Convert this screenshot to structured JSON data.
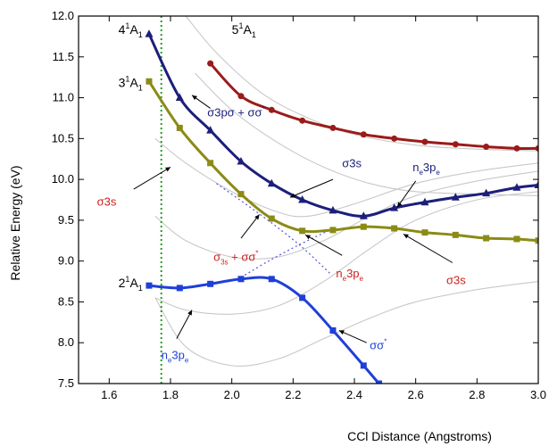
{
  "chart_data": {
    "type": "line",
    "xlabel": "CCl Distance (Angstroms)",
    "ylabel": "Relative Energy (eV)",
    "xlim": [
      1.5,
      3.0
    ],
    "ylim": [
      7.5,
      12.0
    ],
    "xticks": [
      "1.6",
      "1.8",
      "2.0",
      "2.2",
      "2.4",
      "2.6",
      "2.8",
      "3.0"
    ],
    "xtick_values": [
      1.6,
      1.8,
      2.0,
      2.2,
      2.4,
      2.6,
      2.8,
      3.0
    ],
    "yticks": [
      "7.5",
      "8.0",
      "8.5",
      "9.0",
      "9.5",
      "10.0",
      "10.5",
      "11.0",
      "11.5",
      "12.0"
    ],
    "ytick_values": [
      7.5,
      8.0,
      8.5,
      9.0,
      9.5,
      10.0,
      10.5,
      11.0,
      11.5,
      12.0
    ],
    "grid": false,
    "series": [
      {
        "state": {
          "main": "5",
          "sup": "1",
          "letter": "A",
          "sub": "1"
        },
        "color": "#9b1b1b",
        "marker": "circle",
        "x": [
          1.93,
          2.03,
          2.13,
          2.23,
          2.33,
          2.43,
          2.53,
          2.63,
          2.73,
          2.83,
          2.93,
          3.0
        ],
        "y": [
          11.42,
          11.02,
          10.85,
          10.72,
          10.63,
          10.55,
          10.5,
          10.46,
          10.43,
          10.4,
          10.38,
          10.38
        ]
      },
      {
        "state": {
          "main": "4",
          "sup": "1",
          "letter": "A",
          "sub": "1"
        },
        "color": "#1c1f7a",
        "marker": "triangle",
        "x": [
          1.73,
          1.83,
          1.93,
          2.03,
          2.13,
          2.23,
          2.33,
          2.43,
          2.53,
          2.63,
          2.73,
          2.83,
          2.93,
          3.0
        ],
        "y": [
          11.78,
          11.0,
          10.6,
          10.22,
          9.95,
          9.75,
          9.62,
          9.55,
          9.65,
          9.72,
          9.78,
          9.83,
          9.9,
          9.93
        ]
      },
      {
        "state": {
          "main": "3",
          "sup": "1",
          "letter": "A",
          "sub": "1"
        },
        "color": "#8b8b16",
        "marker": "square",
        "x": [
          1.73,
          1.83,
          1.93,
          2.03,
          2.13,
          2.23,
          2.33,
          2.43,
          2.53,
          2.63,
          2.73,
          2.83,
          2.93,
          3.0
        ],
        "y": [
          11.2,
          10.63,
          10.2,
          9.82,
          9.52,
          9.37,
          9.38,
          9.42,
          9.4,
          9.35,
          9.32,
          9.28,
          9.27,
          9.25
        ]
      },
      {
        "state": {
          "main": "2",
          "sup": "1",
          "letter": "A",
          "sub": "1"
        },
        "color": "#1f3fd8",
        "marker": "square",
        "x": [
          1.73,
          1.83,
          1.93,
          2.03,
          2.13,
          2.23,
          2.33,
          2.43,
          2.48
        ],
        "y": [
          8.7,
          8.67,
          8.72,
          8.78,
          8.78,
          8.55,
          8.15,
          7.72,
          7.5
        ]
      }
    ],
    "diabatic_curves": [
      {
        "color": "#c8c8c8",
        "x": [
          1.85,
          1.95,
          2.1,
          2.25,
          2.4,
          2.6,
          2.8,
          3.0
        ],
        "y": [
          12.0,
          11.55,
          11.05,
          10.75,
          10.55,
          10.42,
          10.37,
          10.35
        ]
      },
      {
        "color": "#c8c8c8",
        "x": [
          1.88,
          2.0,
          2.15,
          2.3,
          2.45,
          2.6,
          2.8,
          3.0
        ],
        "y": [
          11.3,
          10.85,
          10.45,
          10.15,
          9.95,
          9.85,
          9.82,
          9.8
        ]
      },
      {
        "color": "#c8c8c8",
        "x": [
          1.75,
          1.85,
          2.0,
          2.15,
          2.25,
          2.4,
          2.6,
          2.8,
          3.0
        ],
        "y": [
          10.5,
          10.2,
          9.85,
          9.6,
          9.55,
          9.7,
          9.95,
          10.1,
          10.2
        ]
      },
      {
        "color": "#c8c8c8",
        "x": [
          1.75,
          1.85,
          2.0,
          2.15,
          2.3,
          2.45,
          2.6,
          2.8,
          3.0
        ],
        "y": [
          9.55,
          9.25,
          9.05,
          9.05,
          9.25,
          9.55,
          9.8,
          9.98,
          10.1
        ]
      },
      {
        "color": "#c8c8c8",
        "x": [
          1.75,
          1.85,
          2.0,
          2.15,
          2.3,
          2.45,
          2.6,
          2.8,
          3.0
        ],
        "y": [
          8.55,
          8.4,
          8.35,
          8.45,
          8.75,
          9.15,
          9.5,
          9.75,
          9.85
        ]
      },
      {
        "color": "#c8c8c8",
        "x": [
          1.75,
          1.85,
          2.0,
          2.15,
          2.3,
          2.45,
          2.6,
          2.8,
          3.0
        ],
        "y": [
          8.55,
          7.95,
          7.72,
          7.8,
          8.05,
          8.3,
          8.5,
          8.65,
          8.75
        ]
      }
    ],
    "diabatic_crossing": [
      {
        "color": "#5555dd",
        "x": [
          1.95,
          2.1,
          2.22,
          2.32
        ],
        "y": [
          9.95,
          9.55,
          9.2,
          8.85
        ]
      },
      {
        "color": "#5555dd",
        "x": [
          2.03,
          2.12,
          2.22,
          2.32
        ],
        "y": [
          8.8,
          9.0,
          9.2,
          9.38
        ]
      }
    ],
    "vertical_marker": {
      "x": 1.77,
      "color": "#2a9a2a"
    },
    "annotations": [
      {
        "parts": [
          {
            "t": "σ3pσ + σσ"
          },
          {
            "t": "*",
            "sup": true
          }
        ],
        "color": "#1c1f7a",
        "tx": 1.92,
        "ty": 10.77,
        "arrow_from": [
          1.93,
          10.87
        ],
        "arrow_to": [
          1.87,
          11.03
        ]
      },
      {
        "parts": [
          {
            "t": "σ3s"
          }
        ],
        "color": "#d02020",
        "tx": 1.56,
        "ty": 9.68,
        "arrow_from": [
          1.68,
          9.88
        ],
        "arrow_to": [
          1.8,
          10.15
        ]
      },
      {
        "parts": [
          {
            "t": "σ3s"
          }
        ],
        "color": "#1c1f7a",
        "tx": 2.36,
        "ty": 10.15,
        "arrow_from": [
          2.33,
          10.0
        ],
        "arrow_to": [
          2.19,
          9.78
        ]
      },
      {
        "parts": [
          {
            "t": "n"
          },
          {
            "t": "e",
            "sub": true
          },
          {
            "t": "3p"
          },
          {
            "t": "e",
            "sub": true
          }
        ],
        "color": "#1c1f7a",
        "tx": 2.59,
        "ty": 10.1,
        "arrow_from": [
          2.6,
          9.98
        ],
        "arrow_to": [
          2.54,
          9.66
        ]
      },
      {
        "parts": [
          {
            "t": "σ"
          },
          {
            "t": "3s",
            "sub": true
          },
          {
            "t": " + σσ"
          },
          {
            "t": "*",
            "sup": true
          }
        ],
        "color": "#d02020",
        "tx": 1.94,
        "ty": 9.0,
        "arrow_from": [
          2.03,
          9.28
        ],
        "arrow_to": [
          2.09,
          9.57
        ]
      },
      {
        "parts": [
          {
            "t": "n"
          },
          {
            "t": "e",
            "sub": true
          },
          {
            "t": "3p"
          },
          {
            "t": "e",
            "sub": true
          }
        ],
        "color": "#d02020",
        "tx": 2.34,
        "ty": 8.8,
        "arrow_from": [
          2.36,
          9.07
        ],
        "arrow_to": [
          2.24,
          9.32
        ]
      },
      {
        "parts": [
          {
            "t": "σ3s"
          }
        ],
        "color": "#d02020",
        "tx": 2.7,
        "ty": 8.72,
        "arrow_from": [
          2.72,
          8.98
        ],
        "arrow_to": [
          2.56,
          9.33
        ]
      },
      {
        "parts": [
          {
            "t": "n"
          },
          {
            "t": "e",
            "sub": true
          },
          {
            "t": "3p"
          },
          {
            "t": "e",
            "sub": true
          }
        ],
        "color": "#1f3fd8",
        "tx": 1.77,
        "ty": 7.8,
        "arrow_from": [
          1.82,
          8.05
        ],
        "arrow_to": [
          1.87,
          8.4
        ]
      },
      {
        "parts": [
          {
            "t": "σσ"
          },
          {
            "t": "*",
            "sup": true
          }
        ],
        "color": "#1f3fd8",
        "tx": 2.45,
        "ty": 7.92,
        "arrow_from": [
          2.44,
          8.0
        ],
        "arrow_to": [
          2.35,
          8.15
        ]
      }
    ]
  }
}
